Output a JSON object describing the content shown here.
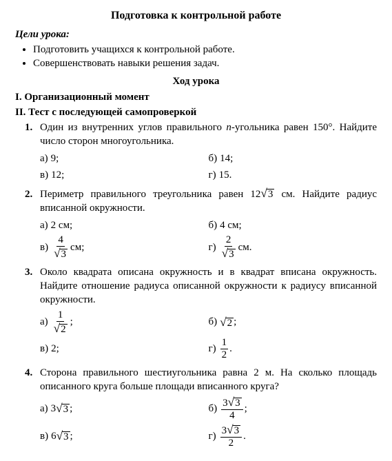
{
  "title": "Подготовка к контрольной работе",
  "goals_label": "Цели урока:",
  "goals": [
    "Подготовить учащихся к контрольной работе.",
    "Совершенствовать навыки решения задач."
  ],
  "flow_title": "Ход урока",
  "roman1": "I. Организационный момент",
  "roman2": "II. Тест с последующей самопроверкой",
  "tasks": [
    {
      "num": "1.",
      "text_a": "Один из внутренних углов правильного ",
      "text_b": "-угольника равен 150°. Найдите число сторон многоугольника.",
      "n_var": "n",
      "opts": [
        {
          "l": "а)",
          "v": "9;"
        },
        {
          "l": "б)",
          "v": "14;"
        },
        {
          "l": "в)",
          "v": "12;"
        },
        {
          "l": "г)",
          "v": "15."
        }
      ]
    },
    {
      "num": "2.",
      "text_a": "Периметр правильного треугольника равен 12",
      "text_b": " см. Найдите радиус вписанной окружности.",
      "sqrt_val": "3",
      "opts": [
        {
          "l": "а)",
          "v": "2 см;"
        },
        {
          "l": "б)",
          "v": "4 см;"
        },
        {
          "l": "в)",
          "frac_num": "4",
          "frac_den_sqrt": "3",
          "tail": " см;"
        },
        {
          "l": "г)",
          "frac_num": "2",
          "frac_den_sqrt": "3",
          "tail": " см."
        }
      ]
    },
    {
      "num": "3.",
      "text": "Около квадрата описана окружность и в квадрат вписана окружность. Найдите отношение радиуса описанной окружности к радиусу вписанной окружности.",
      "opts": [
        {
          "l": "а)",
          "frac_num": "1",
          "frac_den_sqrt": "2",
          "tail": " ;"
        },
        {
          "l": "б)",
          "sqrt": "2",
          "tail": " ;"
        },
        {
          "l": "в)",
          "v": "2;"
        },
        {
          "l": "г)",
          "frac_num": "1",
          "frac_den": "2",
          "tail": " ."
        }
      ]
    },
    {
      "num": "4.",
      "text": "Сторона правильного шестиугольника равна 2 м. На сколько площадь описанного круга больше площади вписанного круга?",
      "opts": [
        {
          "l": "а)",
          "coef": "3",
          "sqrt": "3",
          "tail": " ;"
        },
        {
          "l": "б)",
          "frac_num_coef": "3",
          "frac_num_sqrt": "3",
          "frac_den": "4",
          "tail": " ;"
        },
        {
          "l": "в)",
          "coef": "6",
          "sqrt": "3",
          "tail": " ;"
        },
        {
          "l": "г)",
          "frac_num_coef": "3",
          "frac_num_sqrt": "3",
          "frac_den": "2",
          "tail": " ."
        }
      ]
    }
  ]
}
